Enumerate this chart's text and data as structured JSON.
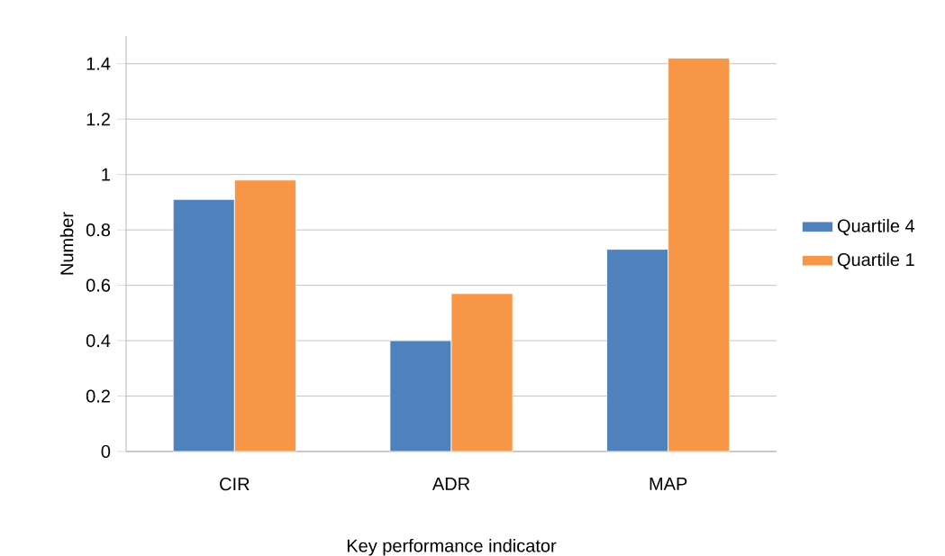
{
  "chart_data": {
    "type": "bar",
    "xlabel": "Key performance indicator",
    "ylabel": "Number",
    "categories": [
      "CIR",
      "ADR",
      "MAP"
    ],
    "series": [
      {
        "name": "Quartile 4",
        "color": "#4f81bd",
        "values": [
          0.91,
          0.4,
          0.73
        ]
      },
      {
        "name": "Quartile 1",
        "color": "#f79646",
        "values": [
          0.98,
          0.57,
          1.42
        ]
      }
    ],
    "ylim": [
      0,
      1.5
    ],
    "yticks": [
      0,
      0.2,
      0.4,
      0.6,
      0.8,
      1,
      1.2,
      1.4
    ],
    "grid": "y",
    "legend": "right"
  }
}
